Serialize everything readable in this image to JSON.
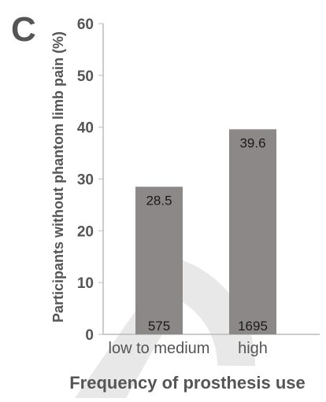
{
  "panel_label": "C",
  "chart_data": {
    "type": "bar",
    "categories": [
      "low to medium",
      "high"
    ],
    "values": [
      28.5,
      39.6
    ],
    "value_labels": [
      "28.5",
      "39.6"
    ],
    "count_labels": [
      "575",
      "1695"
    ],
    "title": "",
    "xlabel": "Frequency of prosthesis use",
    "ylabel": "Participants without phantom limb pain (%)",
    "ylim": [
      0,
      60
    ],
    "yticks": [
      0,
      10,
      20,
      30,
      40,
      50,
      60
    ],
    "bar_color": "#8c8888",
    "grid": false,
    "legend": "none"
  },
  "colors": {
    "text": "#555555",
    "value_text": "#1a1a1a",
    "axis": "#bbbbbb",
    "watermark": "#d9d9d9"
  }
}
